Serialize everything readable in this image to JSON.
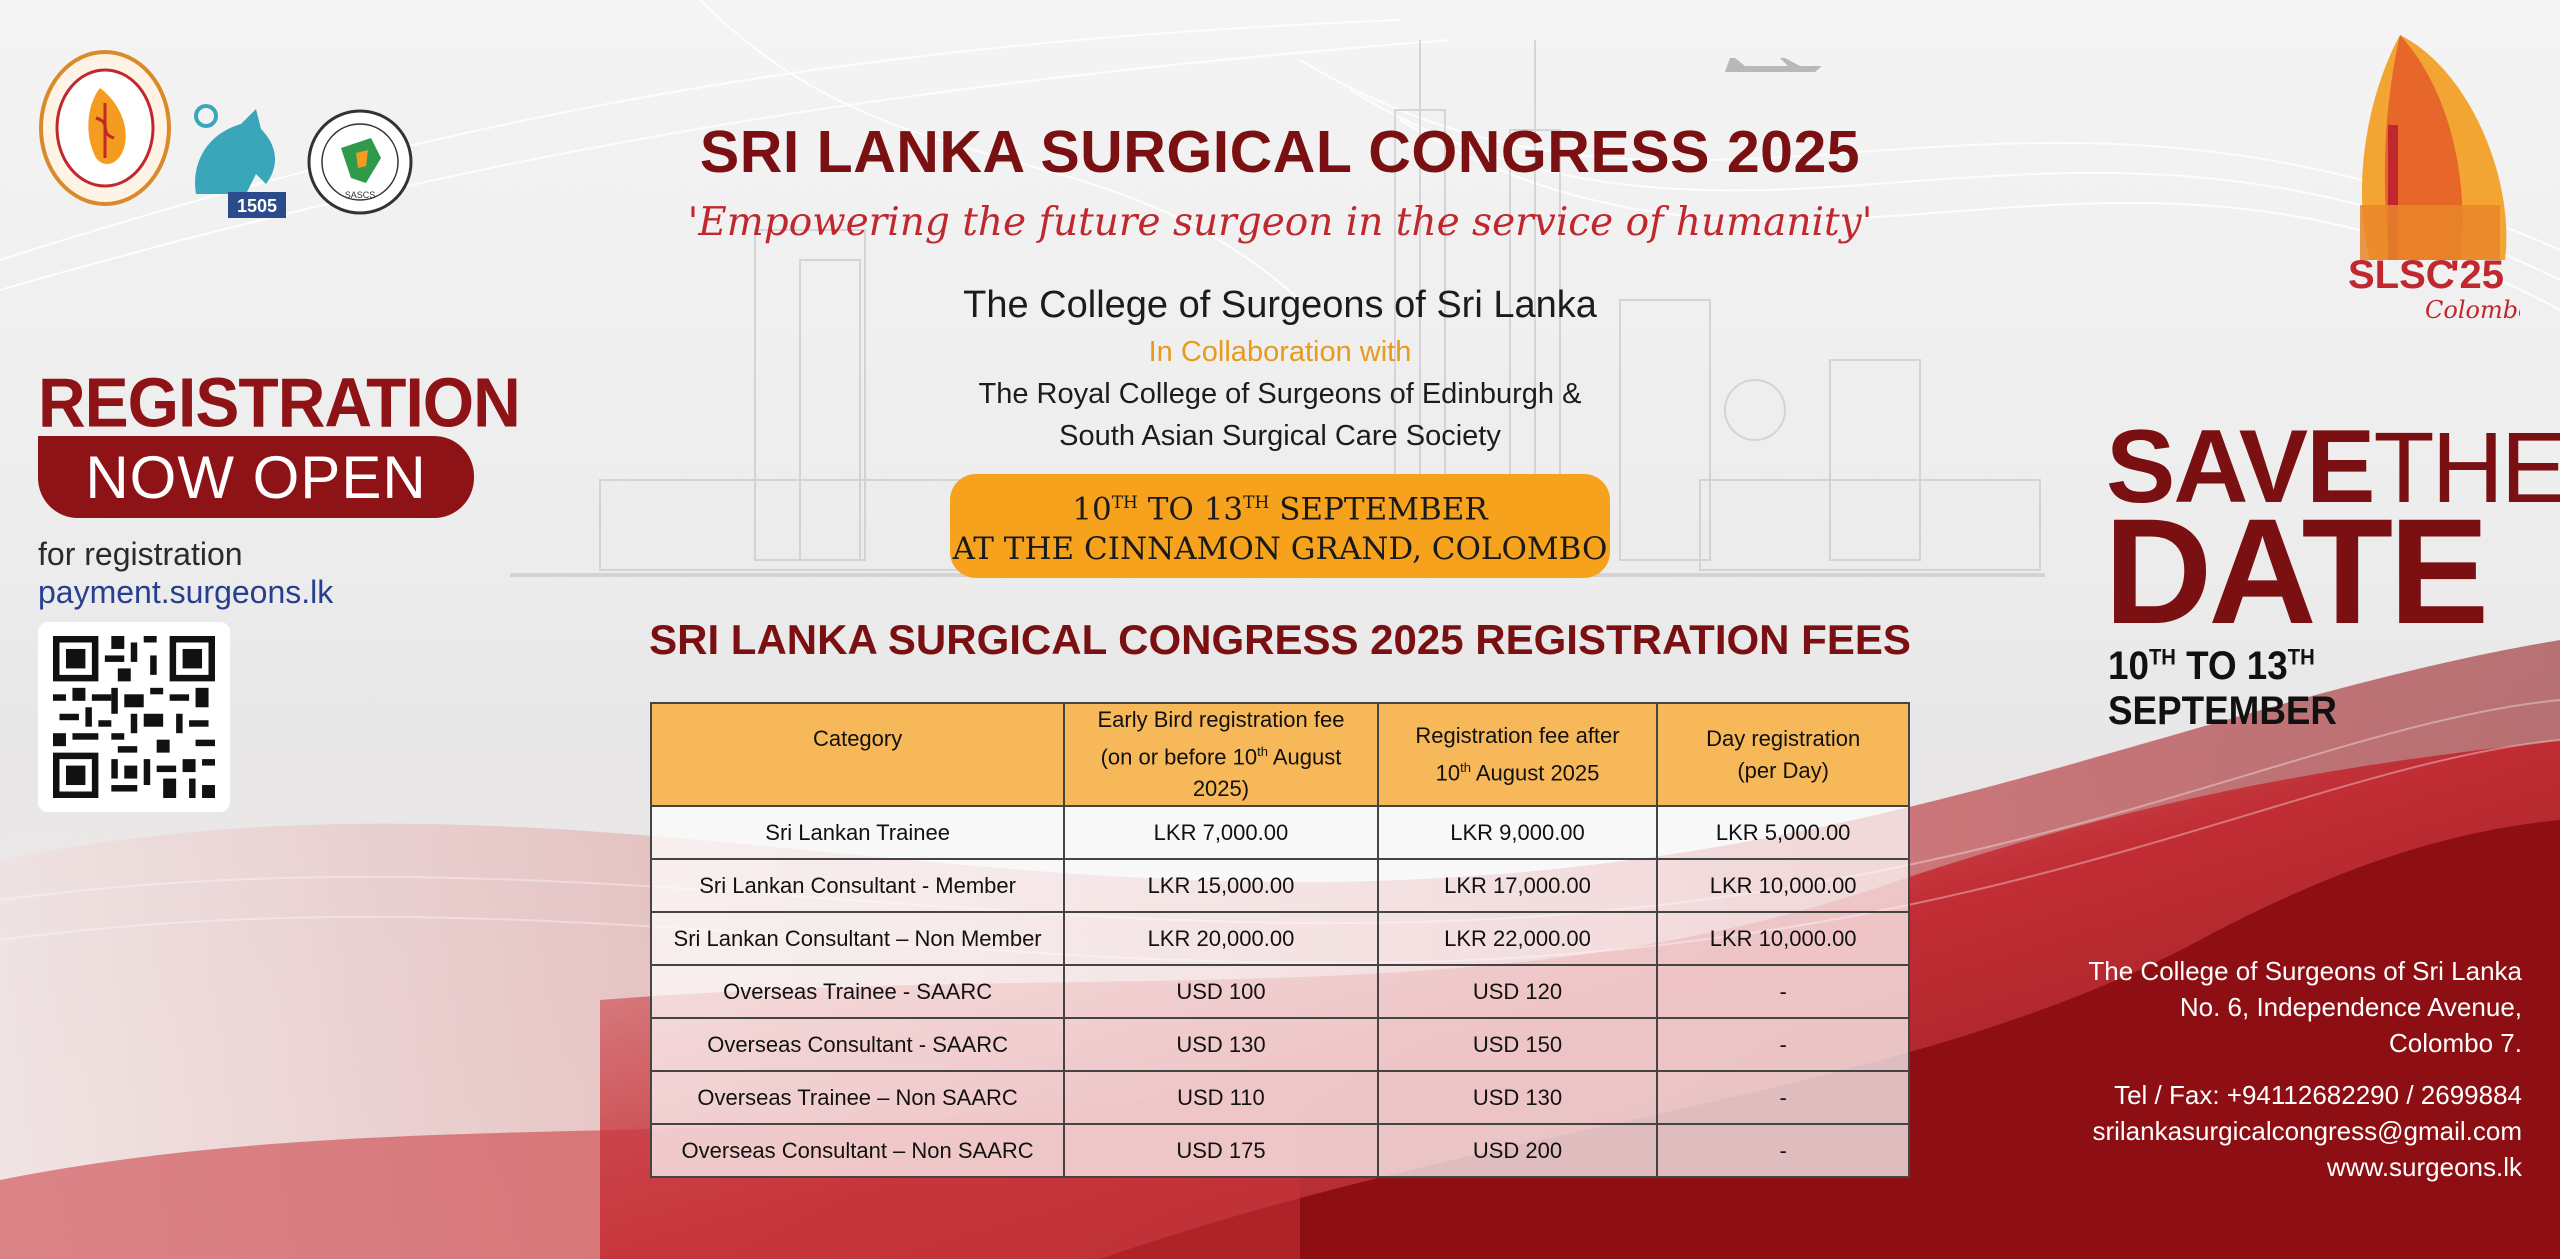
{
  "header": {
    "title": "SRI LANKA SURGICAL CONGRESS 2025",
    "tagline": "'Empowering the future surgeon in the service of humanity'",
    "organizer": "The College of Surgeons of Sri Lanka",
    "collaboration": "In Collaboration with",
    "partner_line1": "The Royal College of Surgeons of Edinburgh &",
    "partner_line2": "South Asian Surgical Care Society"
  },
  "event_dates": {
    "day_start": "10",
    "day_start_suffix": "TH",
    "day_end": "TO 13",
    "day_end_suffix": "TH",
    "month": "SEPTEMBER",
    "venue": "AT THE CINNAMON GRAND, COLOMBO"
  },
  "logos": {
    "rcs_year": "1505",
    "sascs_abbr": "SASCS",
    "slsc_main": "SLSC",
    "slsc_year": "'25",
    "slsc_city": "Colombo"
  },
  "fees": {
    "title": "SRI LANKA SURGICAL CONGRESS 2025 REGISTRATION FEES",
    "headers": {
      "category": "Category",
      "early_line1": "Early Bird registration fee",
      "early_line2_a": "(on or before 10",
      "early_line2_sup": "th",
      "early_line2_b": " August 2025)",
      "after_line1": "Registration fee after",
      "after_line2_a": "10",
      "after_line2_sup": "th",
      "after_line2_b": " August 2025",
      "day_line1": "Day registration",
      "day_line2": "(per Day)"
    },
    "rows": [
      {
        "category": "Sri Lankan Trainee",
        "early": "LKR 7,000.00",
        "after": "LKR 9,000.00",
        "day": "LKR 5,000.00"
      },
      {
        "category": "Sri Lankan Consultant - Member",
        "early": "LKR 15,000.00",
        "after": "LKR 17,000.00",
        "day": "LKR 10,000.00"
      },
      {
        "category": "Sri Lankan Consultant – Non Member",
        "early": "LKR 20,000.00",
        "after": "LKR 22,000.00",
        "day": "LKR 10,000.00"
      },
      {
        "category": "Overseas Trainee - SAARC",
        "early": "USD 100",
        "after": "USD 120",
        "day": "-"
      },
      {
        "category": "Overseas Consultant - SAARC",
        "early": "USD 130",
        "after": "USD 150",
        "day": "-"
      },
      {
        "category": "Overseas Trainee – Non SAARC",
        "early": "USD 110",
        "after": "USD 130",
        "day": "-"
      },
      {
        "category": "Overseas Consultant – Non SAARC",
        "early": "USD 175",
        "after": "USD 200",
        "day": "-"
      }
    ]
  },
  "registration": {
    "title": "REGISTRATION",
    "status": "NOW OPEN",
    "for_text": "for registration",
    "link": "payment.surgeons.lk"
  },
  "save_the_date": {
    "save": "SAVE",
    "the": "THE",
    "date": "DATE",
    "range_a": "10",
    "range_sup1": "TH",
    "range_b": " TO 13",
    "range_sup2": "TH",
    "range_c": " SEPTEMBER"
  },
  "contact": {
    "org": "The College of Surgeons of Sri Lanka",
    "address1": "No. 6, Independence Avenue,",
    "address2": "Colombo 7.",
    "tel": "Tel / Fax: +94112682290 / 2699884",
    "email": "srilankasurgicalcongress@gmail.com",
    "web": "www.surgeons.lk"
  },
  "colors": {
    "maroon": "#7a1012",
    "red": "#c0282e",
    "orange": "#f7a21c",
    "table_header": "#f7b85a"
  }
}
